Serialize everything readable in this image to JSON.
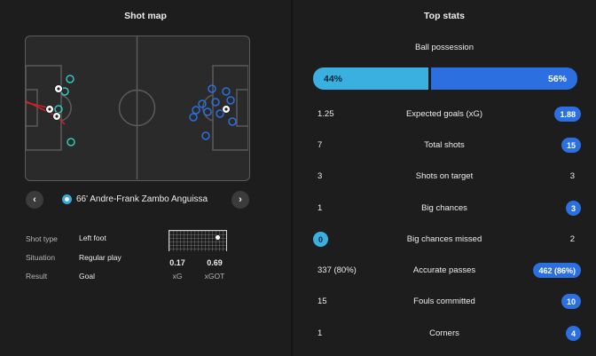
{
  "shot_map": {
    "title": "Shot map",
    "shot_label": "66' Andre-Frank Zambo Anguissa",
    "details": [
      {
        "key": "Shot type",
        "value": "Left foot"
      },
      {
        "key": "Situation",
        "value": "Regular play"
      },
      {
        "key": "Result",
        "value": "Goal"
      }
    ],
    "xg": {
      "value": "0.17",
      "label": "xG"
    },
    "xgot": {
      "value": "0.69",
      "label": "xGOT"
    }
  },
  "top_stats": {
    "title": "Top stats",
    "possession": {
      "label": "Ball possession",
      "home": "44%",
      "away": "56%",
      "home_fraction": 0.44
    },
    "rows": [
      {
        "label": "Expected goals (xG)",
        "home": "1.25",
        "away": "1.88",
        "highlight": "away"
      },
      {
        "label": "Total shots",
        "home": "7",
        "away": "15",
        "highlight": "away"
      },
      {
        "label": "Shots on target",
        "home": "3",
        "away": "3",
        "highlight": "none"
      },
      {
        "label": "Big chances",
        "home": "1",
        "away": "3",
        "highlight": "away"
      },
      {
        "label": "Big chances missed",
        "home": "0",
        "away": "2",
        "highlight": "home"
      },
      {
        "label": "Accurate passes",
        "home": "337 (80%)",
        "away": "462 (86%)",
        "highlight": "away"
      },
      {
        "label": "Fouls committed",
        "home": "15",
        "away": "10",
        "highlight": "away"
      },
      {
        "label": "Corners",
        "home": "1",
        "away": "4",
        "highlight": "away"
      }
    ]
  },
  "colors": {
    "home": "#3ab0e0",
    "away": "#2b6fe0",
    "goal_line": "#d21f2a",
    "background": "#1d1d1d"
  },
  "icons": {
    "prev": "chevron-left-icon",
    "next": "chevron-right-icon",
    "ball": "football-icon"
  }
}
